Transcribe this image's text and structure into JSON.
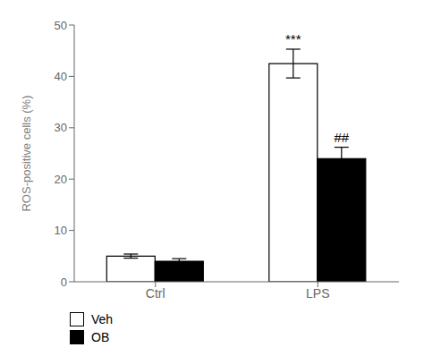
{
  "chart_data": {
    "type": "bar",
    "categories": [
      "Ctrl",
      "LPS"
    ],
    "series": [
      {
        "name": "Veh",
        "color": "#ffffff",
        "values": [
          5.0,
          42.5
        ],
        "errors": [
          0.4,
          2.8
        ]
      },
      {
        "name": "OB",
        "color": "#000000",
        "values": [
          4.0,
          24.0
        ],
        "errors": [
          0.5,
          2.2
        ]
      }
    ],
    "ylabel": "ROS-positive cells (%)",
    "ylim": [
      0,
      50
    ],
    "yticks": [
      0,
      10,
      20,
      30,
      40,
      50
    ],
    "annotations": [
      {
        "text": "***",
        "category": "LPS",
        "series": "Veh"
      },
      {
        "text": "##",
        "category": "LPS",
        "series": "OB"
      }
    ],
    "legend": "bottom",
    "grid": false
  }
}
